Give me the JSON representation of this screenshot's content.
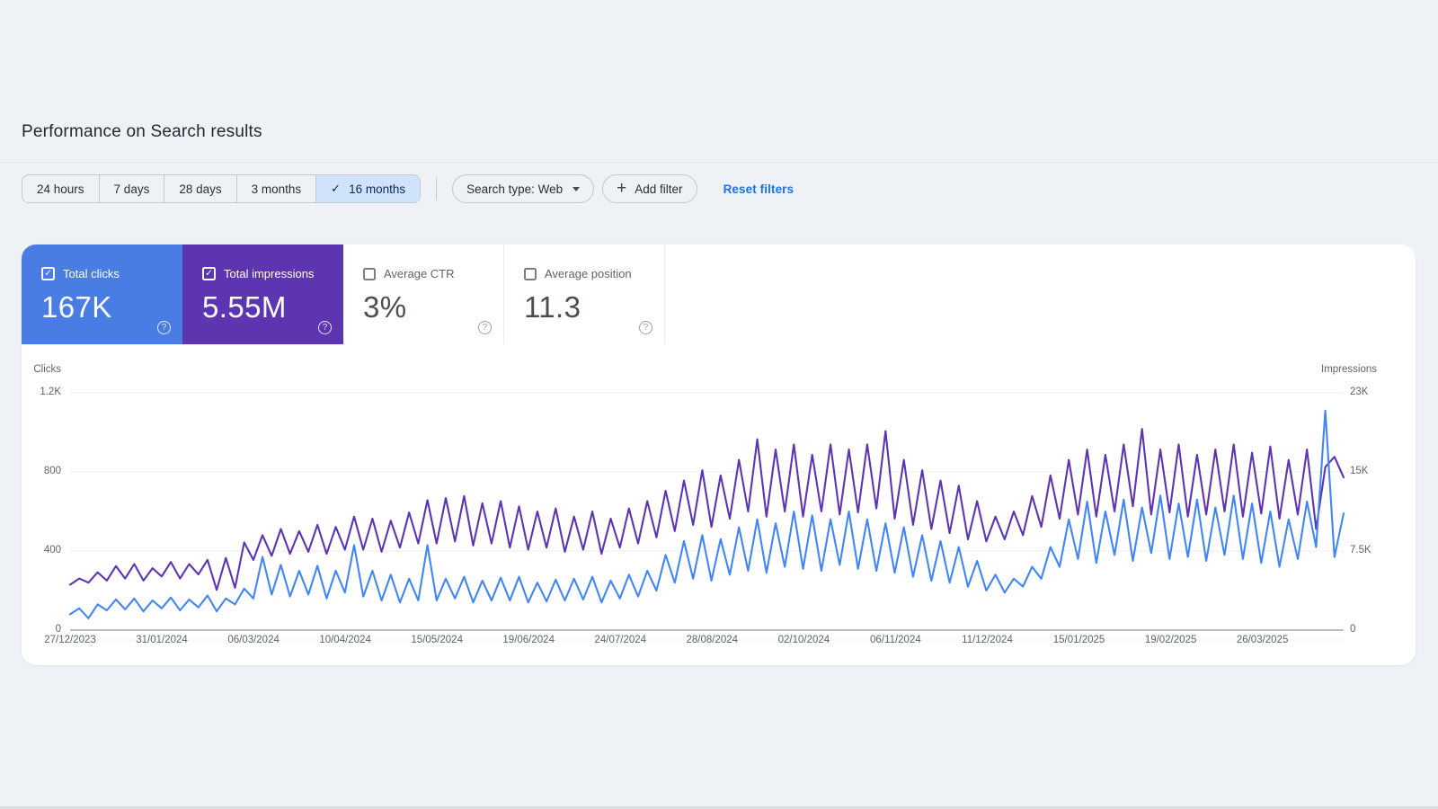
{
  "page": {
    "title": "Performance on Search results"
  },
  "toolbar": {
    "date_ranges": [
      {
        "label": "24 hours",
        "selected": false
      },
      {
        "label": "7 days",
        "selected": false
      },
      {
        "label": "28 days",
        "selected": false
      },
      {
        "label": "3 months",
        "selected": false
      },
      {
        "label": "16 months",
        "selected": true
      }
    ],
    "selected_range_check": "✓",
    "search_type": {
      "label": "Search type: Web"
    },
    "add_filter": {
      "label": "Add filter",
      "plus_glyph": "+"
    },
    "reset_filters": {
      "label": "Reset filters"
    }
  },
  "ui_colors": {
    "page_background": "#eef1f6",
    "selected_chip_background": "#cfe3fb",
    "link_blue": "#1a73e8",
    "clicks_card": "#4a7de4",
    "impressions_card": "#5e35b1"
  },
  "metrics": [
    {
      "label": "Total clicks",
      "value": "167K",
      "checked": true,
      "bg": "#4a7de4",
      "fg": "#ffffff"
    },
    {
      "label": "Total impressions",
      "value": "5.55M",
      "checked": true,
      "bg": "#5e35b1",
      "fg": "#ffffff"
    },
    {
      "label": "Average CTR",
      "value": "3%",
      "checked": false
    },
    {
      "label": "Average position",
      "value": "11.3",
      "checked": false
    }
  ],
  "help_glyph": "?",
  "check_glyph": "✓",
  "chart_data": {
    "type": "line",
    "left_axis": {
      "title": "Clicks",
      "ticks": [
        "1.2K",
        "800",
        "400",
        "0"
      ],
      "max": 1200
    },
    "right_axis": {
      "title": "Impressions",
      "ticks": [
        "23K",
        "15K",
        "7.5K",
        "0"
      ],
      "max": 23000
    },
    "x_labels": [
      "27/12/2023",
      "31/01/2024",
      "06/03/2024",
      "10/04/2024",
      "15/05/2024",
      "19/06/2024",
      "24/07/2024",
      "28/08/2024",
      "02/10/2024",
      "06/11/2024",
      "11/12/2024",
      "15/01/2025",
      "19/02/2025",
      "26/03/2025"
    ],
    "x_label_day_offsets": [
      0,
      35,
      70,
      105,
      140,
      175,
      210,
      245,
      280,
      315,
      350,
      385,
      420,
      455
    ],
    "x_span_days": 486,
    "grid": true,
    "legend_position": "none",
    "series": [
      {
        "name": "Total clicks",
        "axis": "left",
        "color": "#4285f4",
        "values": [
          80,
          110,
          60,
          130,
          100,
          155,
          105,
          160,
          95,
          150,
          110,
          165,
          100,
          155,
          115,
          175,
          95,
          160,
          130,
          210,
          160,
          370,
          180,
          330,
          170,
          300,
          180,
          325,
          160,
          300,
          190,
          430,
          170,
          300,
          150,
          280,
          140,
          260,
          150,
          430,
          150,
          260,
          160,
          270,
          140,
          250,
          150,
          265,
          150,
          270,
          140,
          240,
          145,
          255,
          150,
          260,
          155,
          270,
          140,
          250,
          160,
          280,
          170,
          300,
          200,
          380,
          240,
          450,
          260,
          480,
          250,
          460,
          280,
          520,
          300,
          560,
          290,
          540,
          320,
          600,
          310,
          580,
          300,
          560,
          330,
          600,
          310,
          560,
          300,
          540,
          290,
          520,
          270,
          480,
          250,
          450,
          240,
          420,
          220,
          350,
          200,
          280,
          190,
          260,
          220,
          320,
          260,
          420,
          320,
          560,
          360,
          650,
          340,
          600,
          380,
          660,
          350,
          620,
          390,
          680,
          360,
          640,
          370,
          660,
          350,
          620,
          380,
          680,
          360,
          640,
          340,
          600,
          320,
          560,
          360,
          650,
          420,
          1110,
          370,
          590
        ]
      },
      {
        "name": "Total impressions",
        "axis": "right",
        "color": "#5e35b1",
        "values": [
          4400,
          5000,
          4600,
          5600,
          4800,
          6200,
          5000,
          6400,
          4800,
          6000,
          5200,
          6600,
          5000,
          6400,
          5400,
          6800,
          3900,
          7000,
          4100,
          8500,
          6800,
          9200,
          7200,
          9800,
          7400,
          9600,
          7600,
          10200,
          7400,
          10000,
          7800,
          11000,
          7800,
          10800,
          7600,
          10600,
          8000,
          11400,
          8400,
          12600,
          8400,
          12800,
          8600,
          13000,
          8200,
          12300,
          8400,
          12500,
          8000,
          12000,
          7800,
          11500,
          8000,
          11800,
          7600,
          11000,
          7800,
          11500,
          7400,
          10800,
          8000,
          11800,
          8400,
          12500,
          9000,
          13500,
          9600,
          14500,
          10200,
          15500,
          10000,
          15000,
          10800,
          16500,
          11500,
          18500,
          11000,
          17500,
          11500,
          18000,
          11000,
          17000,
          11500,
          18000,
          11200,
          17500,
          11400,
          18000,
          11800,
          19300,
          10800,
          16500,
          10200,
          15500,
          9800,
          14500,
          9400,
          14000,
          8800,
          12500,
          8600,
          11000,
          8800,
          11500,
          9200,
          13000,
          10000,
          15000,
          10800,
          16500,
          11200,
          17500,
          11000,
          17000,
          11500,
          18000,
          12000,
          19500,
          11200,
          17500,
          11400,
          18000,
          11000,
          17000,
          11200,
          17500,
          11500,
          18000,
          11000,
          17200,
          11300,
          17800,
          10800,
          16500,
          11200,
          17500,
          9800,
          15800,
          16800,
          14800
        ]
      }
    ]
  }
}
